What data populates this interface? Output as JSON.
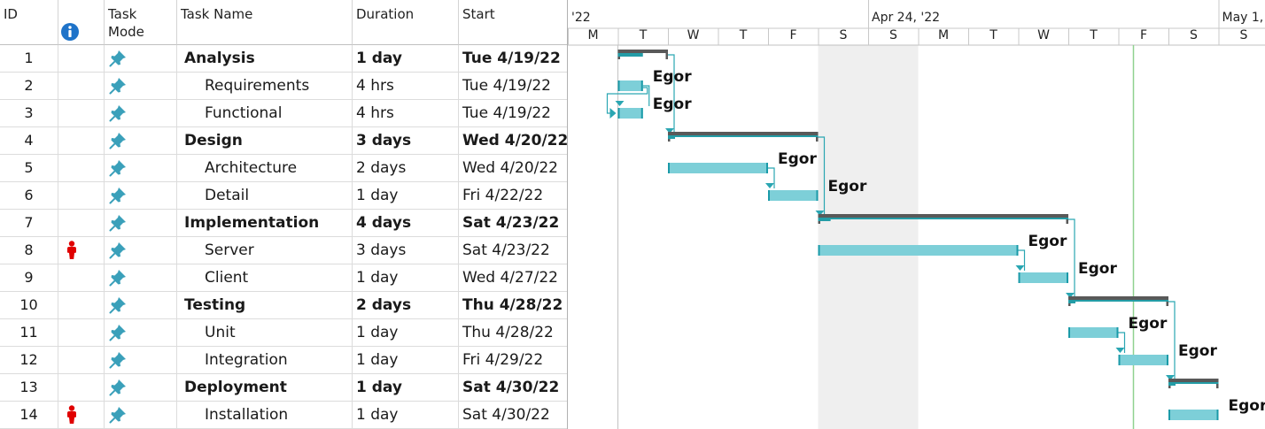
{
  "columns": {
    "id": "ID",
    "info_icon": "info-icon",
    "mode": "Task\nMode",
    "name": "Task Name",
    "duration": "Duration",
    "start": "Start"
  },
  "timescale": {
    "week_labels": [
      "'22",
      "Apr 24, '22",
      "May 1,"
    ],
    "day_labels": [
      "M",
      "T",
      "W",
      "T",
      "F",
      "S",
      "S",
      "M",
      "T",
      "W",
      "T",
      "F",
      "S",
      "S"
    ]
  },
  "rows": [
    {
      "id": "1",
      "name": "Analysis",
      "duration": "1 day",
      "start": "Tue 4/19/22",
      "summary": true,
      "indicator": false,
      "resource": ""
    },
    {
      "id": "2",
      "name": "Requirements",
      "duration": "4 hrs",
      "start": "Tue 4/19/22",
      "summary": false,
      "indicator": false,
      "resource": "Egor"
    },
    {
      "id": "3",
      "name": "Functional",
      "duration": "4 hrs",
      "start": "Tue 4/19/22",
      "summary": false,
      "indicator": false,
      "resource": "Egor"
    },
    {
      "id": "4",
      "name": "Design",
      "duration": "3 days",
      "start": "Wed 4/20/22",
      "summary": true,
      "indicator": false,
      "resource": ""
    },
    {
      "id": "5",
      "name": "Architecture",
      "duration": "2 days",
      "start": "Wed 4/20/22",
      "summary": false,
      "indicator": false,
      "resource": "Egor"
    },
    {
      "id": "6",
      "name": "Detail",
      "duration": "1 day",
      "start": "Fri 4/22/22",
      "summary": false,
      "indicator": false,
      "resource": "Egor"
    },
    {
      "id": "7",
      "name": "Implementation",
      "duration": "4 days",
      "start": "Sat 4/23/22",
      "summary": true,
      "indicator": false,
      "resource": ""
    },
    {
      "id": "8",
      "name": "Server",
      "duration": "3 days",
      "start": "Sat 4/23/22",
      "summary": false,
      "indicator": true,
      "resource": "Egor"
    },
    {
      "id": "9",
      "name": "Client",
      "duration": "1 day",
      "start": "Wed 4/27/22",
      "summary": false,
      "indicator": false,
      "resource": "Egor"
    },
    {
      "id": "10",
      "name": "Testing",
      "duration": "2 days",
      "start": "Thu 4/28/22",
      "summary": true,
      "indicator": false,
      "resource": ""
    },
    {
      "id": "11",
      "name": "Unit",
      "duration": "1 day",
      "start": "Thu 4/28/22",
      "summary": false,
      "indicator": false,
      "resource": "Egor"
    },
    {
      "id": "12",
      "name": "Integration",
      "duration": "1 day",
      "start": "Fri 4/29/22",
      "summary": false,
      "indicator": false,
      "resource": "Egor"
    },
    {
      "id": "13",
      "name": "Deployment",
      "duration": "1 day",
      "start": "Sat 4/30/22",
      "summary": true,
      "indicator": false,
      "resource": ""
    },
    {
      "id": "14",
      "name": "Installation",
      "duration": "1 day",
      "start": "Sat 4/30/22",
      "summary": false,
      "indicator": true,
      "resource": "Egor"
    }
  ],
  "colors": {
    "task_bar": "#7dcfd8",
    "task_bar_edge": "#1a9aa8",
    "summary_bar": "#595959",
    "summary_progress": "#239ca6",
    "weekend": "#efefef",
    "link": "#2aa6b2",
    "today_line": "#8fd18f",
    "status_date_line": "#c8c8c8",
    "indicator": "#e00000",
    "info_icon": "#1e73c9",
    "pin_icon": "#3aa0ba"
  }
}
